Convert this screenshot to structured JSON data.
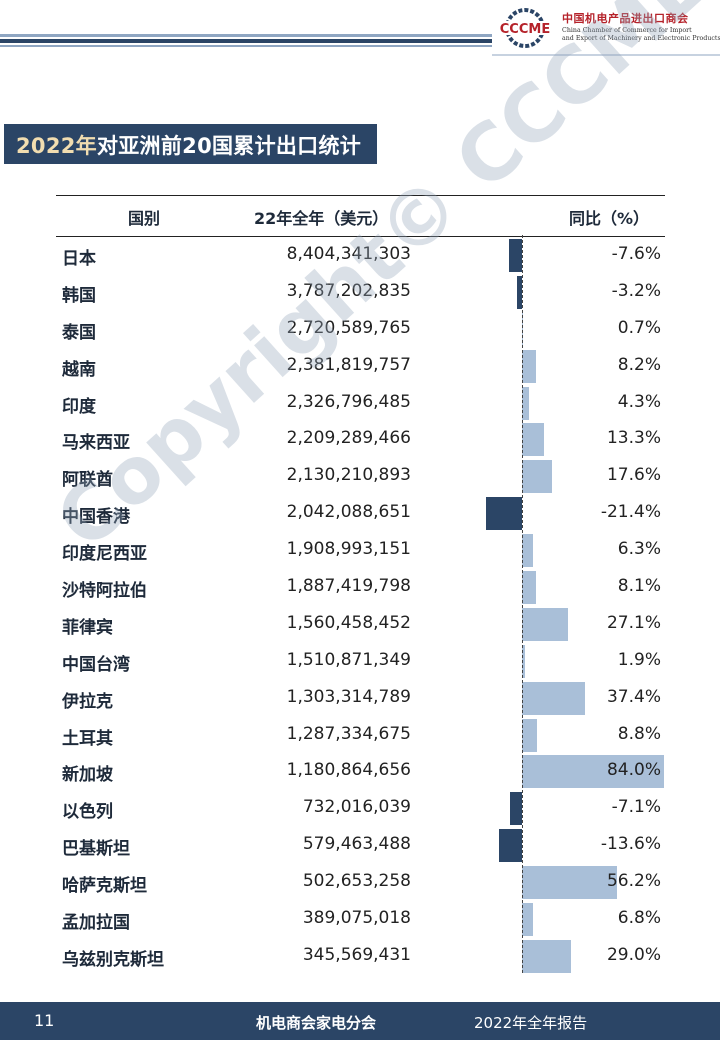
{
  "header": {
    "logo_abbr": "CCCME",
    "logo_cn": "中国机电产品进出口商会",
    "logo_en_line1": "China Chamber of Commerce for Import",
    "logo_en_line2": "and Export of Machinery and Electronic Products"
  },
  "title": {
    "year": "2022年",
    "rest": "对亚洲前20国累计出口统计"
  },
  "table": {
    "headers": {
      "country": "国别",
      "value": "22年全年（美元）",
      "yoy": "同比（%）"
    },
    "rows": [
      {
        "country": "日本",
        "value": "8,404,341,303",
        "yoy": "-7.6%",
        "yoy_num": -7.6
      },
      {
        "country": "韩国",
        "value": "3,787,202,835",
        "yoy": "-3.2%",
        "yoy_num": -3.2
      },
      {
        "country": "泰国",
        "value": "2,720,589,765",
        "yoy": "0.7%",
        "yoy_num": 0.7
      },
      {
        "country": "越南",
        "value": "2,381,819,757",
        "yoy": "8.2%",
        "yoy_num": 8.2
      },
      {
        "country": "印度",
        "value": "2,326,796,485",
        "yoy": "4.3%",
        "yoy_num": 4.3
      },
      {
        "country": "马来西亚",
        "value": "2,209,289,466",
        "yoy": "13.3%",
        "yoy_num": 13.3
      },
      {
        "country": "阿联酋",
        "value": "2,130,210,893",
        "yoy": "17.6%",
        "yoy_num": 17.6
      },
      {
        "country": "中国香港",
        "value": "2,042,088,651",
        "yoy": "-21.4%",
        "yoy_num": -21.4
      },
      {
        "country": "印度尼西亚",
        "value": "1,908,993,151",
        "yoy": "6.3%",
        "yoy_num": 6.3
      },
      {
        "country": "沙特阿拉伯",
        "value": "1,887,419,798",
        "yoy": "8.1%",
        "yoy_num": 8.1
      },
      {
        "country": "菲律宾",
        "value": "1,560,458,452",
        "yoy": "27.1%",
        "yoy_num": 27.1
      },
      {
        "country": "中国台湾",
        "value": "1,510,871,349",
        "yoy": "1.9%",
        "yoy_num": 1.9
      },
      {
        "country": "伊拉克",
        "value": "1,303,314,789",
        "yoy": "37.4%",
        "yoy_num": 37.4
      },
      {
        "country": "土耳其",
        "value": "1,287,334,675",
        "yoy": "8.8%",
        "yoy_num": 8.8
      },
      {
        "country": "新加坡",
        "value": "1,180,864,656",
        "yoy": "84.0%",
        "yoy_num": 84.0
      },
      {
        "country": "以色列",
        "value": "732,016,039",
        "yoy": "-7.1%",
        "yoy_num": -7.1
      },
      {
        "country": "巴基斯坦",
        "value": "579,463,488",
        "yoy": "-13.6%",
        "yoy_num": -13.6
      },
      {
        "country": "哈萨克斯坦",
        "value": "502,653,258",
        "yoy": "56.2%",
        "yoy_num": 56.2
      },
      {
        "country": "孟加拉国",
        "value": "389,075,018",
        "yoy": "6.8%",
        "yoy_num": 6.8
      },
      {
        "country": "乌兹别克斯坦",
        "value": "345,569,431",
        "yoy": "29.0%",
        "yoy_num": 29.0
      }
    ]
  },
  "watermark": "Copyright© CCCME",
  "footer": {
    "page": "11",
    "center": "机电商会家电分会",
    "right": "2022年全年报告"
  },
  "colors": {
    "navy": "#2b4566",
    "bar_positive": "#a9bfd8",
    "bar_negative": "#2b4566",
    "logo_red": "#b5222a"
  }
}
